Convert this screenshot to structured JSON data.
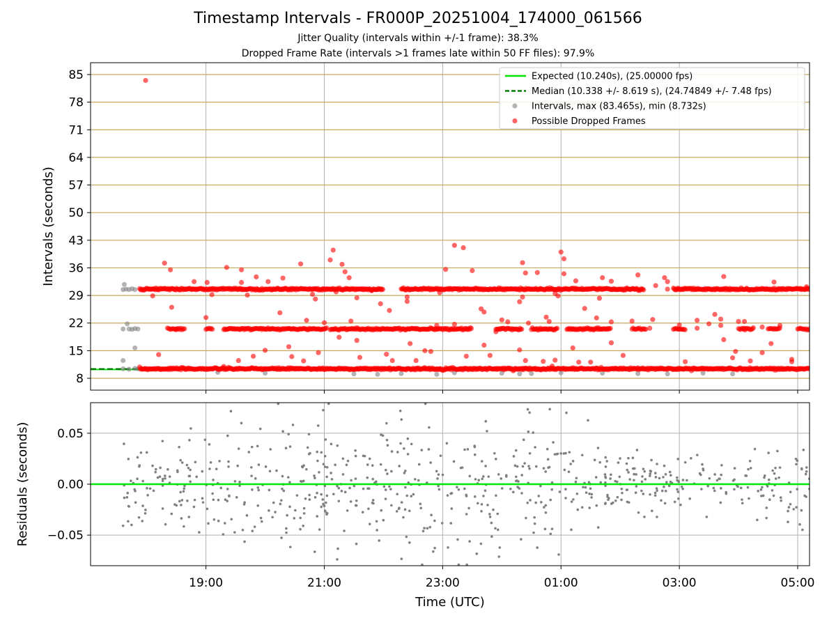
{
  "title": "Timestamp Intervals - FR000P_20251004_174000_061566",
  "subtitle1": "Jitter Quality (intervals within +/-1 frame): 38.3%",
  "subtitle2": "Dropped Frame Rate (intervals >1 frames late within 50 FF files): 97.9%",
  "colors": {
    "expected": "#00e600",
    "median": "#007a00",
    "intervals": "#808080",
    "dropped": "#ff0000",
    "hgrid": "#c8a85a",
    "vgrid": "#b0b0b0"
  },
  "chart_data": [
    {
      "type": "scatter",
      "name": "intervals",
      "xlabel": "",
      "ylabel": "Intervals (seconds)",
      "xlim": [
        17.05,
        29.2
      ],
      "ylim": [
        5.0,
        88.0
      ],
      "yticks": [
        8,
        15,
        22,
        29,
        36,
        43,
        50,
        57,
        64,
        71,
        78,
        85
      ],
      "ytick_labels": [
        "8",
        "15",
        "22",
        "29",
        "36",
        "43",
        "50",
        "57",
        "64",
        "71",
        "78",
        "85"
      ],
      "xticks": [
        19,
        21,
        23,
        25,
        27,
        29
      ],
      "legend_position": "top-right",
      "legend": [
        {
          "label": "Expected (10.240s), (25.00000 fps)",
          "kind": "line-solid"
        },
        {
          "label": "Median (10.338 +/- 8.619 s), (24.74849 +/- 7.48 fps)",
          "kind": "line-dashed"
        },
        {
          "label": "Intervals, max (83.465s), min (8.732s)",
          "kind": "dot-gray"
        },
        {
          "label": "Possible Dropped Frames",
          "kind": "dot-red"
        }
      ],
      "expected_value": 10.24,
      "median_value": 10.338,
      "median_x_range": [
        17.05,
        17.85
      ],
      "series": [
        {
          "name": "Intervals",
          "color": "#808080",
          "points": [
            [
              17.6,
              30.5
            ],
            [
              17.62,
              31.8
            ],
            [
              17.65,
              30.6
            ],
            [
              17.7,
              30.5
            ],
            [
              17.75,
              30.7
            ],
            [
              17.8,
              30.5
            ],
            [
              17.6,
              20.5
            ],
            [
              17.67,
              21.8
            ],
            [
              17.7,
              20.5
            ],
            [
              17.75,
              20.4
            ],
            [
              17.8,
              20.6
            ],
            [
              17.85,
              20.5
            ],
            [
              17.6,
              12.5
            ],
            [
              17.8,
              15.7
            ],
            [
              17.6,
              10.4
            ],
            [
              17.7,
              10.3
            ],
            [
              17.8,
              10.5
            ],
            [
              17.85,
              10.4
            ],
            [
              19.2,
              9.5
            ],
            [
              20.0,
              9.3
            ],
            [
              21.5,
              9.1
            ],
            [
              21.9,
              9.0
            ],
            [
              22.3,
              9.2
            ],
            [
              22.9,
              9.0
            ],
            [
              23.2,
              9.4
            ],
            [
              24.0,
              9.3
            ],
            [
              24.3,
              9.1
            ],
            [
              24.5,
              9.2
            ],
            [
              25.0,
              9.4
            ],
            [
              25.7,
              9.3
            ],
            [
              26.3,
              9.2
            ],
            [
              26.8,
              9.1
            ],
            [
              27.4,
              9.3
            ],
            [
              27.9,
              9.1
            ]
          ]
        },
        {
          "name": "Possible Dropped Frames",
          "color": "#ff0000",
          "bands": [
            {
              "y": 10.4,
              "x_start": 17.88,
              "x_end": 29.2,
              "step": 0.012
            },
            {
              "y": 20.5,
              "x_start": 18.35,
              "x_end": 18.65,
              "step": 0.018
            },
            {
              "y": 20.5,
              "x_start": 19.0,
              "x_end": 19.12,
              "step": 0.018
            },
            {
              "y": 20.5,
              "x_start": 19.3,
              "x_end": 21.05,
              "step": 0.015
            },
            {
              "y": 20.5,
              "x_start": 21.1,
              "x_end": 23.5,
              "step": 0.015
            },
            {
              "y": 20.5,
              "x_start": 23.9,
              "x_end": 24.35,
              "step": 0.015
            },
            {
              "y": 20.5,
              "x_start": 24.5,
              "x_end": 24.95,
              "step": 0.015
            },
            {
              "y": 20.5,
              "x_start": 25.1,
              "x_end": 25.85,
              "step": 0.015
            },
            {
              "y": 20.5,
              "x_start": 26.2,
              "x_end": 26.45,
              "step": 0.018
            },
            {
              "y": 20.5,
              "x_start": 26.9,
              "x_end": 27.1,
              "step": 0.018
            },
            {
              "y": 20.5,
              "x_start": 28.0,
              "x_end": 28.25,
              "step": 0.018
            },
            {
              "y": 20.5,
              "x_start": 28.5,
              "x_end": 28.7,
              "step": 0.018
            },
            {
              "y": 20.5,
              "x_start": 29.0,
              "x_end": 29.2,
              "step": 0.018
            },
            {
              "y": 30.6,
              "x_start": 17.88,
              "x_end": 22.0,
              "step": 0.013
            },
            {
              "y": 30.6,
              "x_start": 22.3,
              "x_end": 26.4,
              "step": 0.013
            },
            {
              "y": 30.6,
              "x_start": 26.9,
              "x_end": 29.2,
              "step": 0.013
            }
          ],
          "points": [
            [
              17.98,
              83.5
            ],
            [
              18.1,
              28.9
            ],
            [
              18.2,
              14.0
            ],
            [
              18.3,
              37.2
            ],
            [
              18.4,
              35.5
            ],
            [
              18.42,
              26.0
            ],
            [
              18.5,
              20.5
            ],
            [
              18.8,
              32.5
            ],
            [
              19.0,
              23.4
            ],
            [
              19.02,
              32.3
            ],
            [
              19.1,
              29.2
            ],
            [
              19.3,
              11.0
            ],
            [
              19.35,
              36.1
            ],
            [
              19.55,
              12.5
            ],
            [
              19.6,
              35.5
            ],
            [
              19.6,
              32.3
            ],
            [
              19.7,
              29.1
            ],
            [
              19.8,
              13.6
            ],
            [
              19.85,
              33.7
            ],
            [
              20.0,
              15.1
            ],
            [
              20.05,
              32.5
            ],
            [
              20.25,
              24.6
            ],
            [
              20.3,
              33.4
            ],
            [
              20.4,
              16.0
            ],
            [
              20.45,
              13.5
            ],
            [
              20.6,
              37.0
            ],
            [
              20.65,
              12.4
            ],
            [
              20.7,
              22.7
            ],
            [
              20.8,
              29.3
            ],
            [
              20.85,
              28.1
            ],
            [
              20.9,
              14.5
            ],
            [
              21.0,
              22.1
            ],
            [
              21.1,
              38.0
            ],
            [
              21.15,
              40.5
            ],
            [
              21.2,
              29.9
            ],
            [
              21.25,
              18.4
            ],
            [
              21.3,
              36.9
            ],
            [
              21.35,
              35.0
            ],
            [
              21.42,
              33.5
            ],
            [
              21.45,
              22.5
            ],
            [
              21.55,
              17.6
            ],
            [
              21.55,
              28.4
            ],
            [
              21.6,
              13.3
            ],
            [
              21.8,
              30.2
            ],
            [
              21.95,
              26.9
            ],
            [
              22.05,
              14.1
            ],
            [
              22.1,
              25.2
            ],
            [
              22.15,
              12.5
            ],
            [
              22.4,
              27.5
            ],
            [
              22.4,
              28.6
            ],
            [
              22.45,
              16.8
            ],
            [
              22.55,
              12.5
            ],
            [
              22.7,
              15.0
            ],
            [
              22.8,
              14.8
            ],
            [
              22.9,
              21.4
            ],
            [
              22.95,
              29.7
            ],
            [
              23.05,
              35.6
            ],
            [
              23.2,
              21.7
            ],
            [
              23.2,
              41.7
            ],
            [
              23.35,
              41.1
            ],
            [
              23.4,
              13.6
            ],
            [
              23.5,
              35.3
            ],
            [
              23.65,
              25.6
            ],
            [
              23.7,
              24.8
            ],
            [
              23.7,
              16.4
            ],
            [
              23.8,
              13.8
            ],
            [
              23.9,
              19.8
            ],
            [
              24.0,
              22.8
            ],
            [
              24.1,
              22.3
            ],
            [
              24.3,
              15.2
            ],
            [
              24.3,
              27.4
            ],
            [
              24.35,
              28.6
            ],
            [
              24.35,
              37.3
            ],
            [
              24.4,
              34.7
            ],
            [
              24.4,
              12.5
            ],
            [
              24.45,
              22.0
            ],
            [
              24.6,
              34.8
            ],
            [
              24.7,
              12.3
            ],
            [
              24.75,
              23.5
            ],
            [
              24.8,
              22.4
            ],
            [
              24.85,
              11.1
            ],
            [
              24.9,
              12.6
            ],
            [
              24.9,
              29.5
            ],
            [
              24.95,
              28.9
            ],
            [
              25.0,
              40.0
            ],
            [
              25.05,
              38.3
            ],
            [
              25.05,
              34.5
            ],
            [
              25.2,
              15.7
            ],
            [
              25.2,
              20.4
            ],
            [
              25.25,
              32.7
            ],
            [
              25.3,
              12.1
            ],
            [
              25.4,
              25.7
            ],
            [
              25.5,
              12.1
            ],
            [
              25.6,
              23.3
            ],
            [
              25.65,
              28.3
            ],
            [
              25.7,
              33.5
            ],
            [
              25.85,
              17.0
            ],
            [
              25.85,
              22.3
            ],
            [
              25.85,
              32.6
            ],
            [
              26.05,
              13.8
            ],
            [
              26.2,
              22.5
            ],
            [
              26.3,
              34.2
            ],
            [
              26.5,
              20.7
            ],
            [
              26.55,
              22.9
            ],
            [
              26.6,
              31.5
            ],
            [
              26.75,
              33.5
            ],
            [
              26.8,
              32.5
            ],
            [
              26.8,
              30.6
            ],
            [
              27.0,
              21.5
            ],
            [
              27.1,
              12.2
            ],
            [
              27.3,
              20.7
            ],
            [
              27.3,
              22.7
            ],
            [
              27.5,
              21.8
            ],
            [
              27.6,
              24.2
            ],
            [
              27.7,
              21.4
            ],
            [
              27.7,
              23.0
            ],
            [
              27.75,
              33.8
            ],
            [
              27.75,
              17.8
            ],
            [
              27.9,
              13.2
            ],
            [
              27.95,
              14.8
            ],
            [
              28.0,
              22.4
            ],
            [
              28.1,
              20.7
            ],
            [
              28.1,
              22.4
            ],
            [
              28.2,
              12.4
            ],
            [
              28.25,
              20.8
            ],
            [
              28.4,
              21.0
            ],
            [
              28.4,
              14.5
            ],
            [
              28.55,
              16.8
            ],
            [
              28.6,
              32.4
            ],
            [
              28.7,
              21.4
            ],
            [
              28.9,
              12.2
            ],
            [
              28.9,
              12.8
            ],
            [
              29.15,
              31.2
            ]
          ]
        }
      ]
    },
    {
      "type": "scatter",
      "name": "residuals",
      "xlabel": "Time (UTC)",
      "ylabel": "Residuals (seconds)",
      "xlim": [
        17.05,
        29.2
      ],
      "ylim": [
        -0.08,
        0.08
      ],
      "yticks": [
        0.05,
        0.0,
        -0.05
      ],
      "ytick_labels": [
        "0.05",
        "0.00",
        "−0.05"
      ],
      "xticks": [
        19,
        21,
        23,
        25,
        27,
        29
      ],
      "xtick_labels": [
        "19:00",
        "21:00",
        "23:00",
        "01:00",
        "03:00",
        "05:00"
      ],
      "zero_line": 0.0,
      "point_count": 720,
      "noise_profile": [
        [
          17.6,
          0.018
        ],
        [
          18.0,
          0.02
        ],
        [
          18.8,
          0.024
        ],
        [
          19.5,
          0.03
        ],
        [
          20.5,
          0.032
        ],
        [
          21.5,
          0.03
        ],
        [
          22.5,
          0.032
        ],
        [
          23.5,
          0.035
        ],
        [
          24.5,
          0.036
        ],
        [
          25.2,
          0.025
        ],
        [
          26.0,
          0.016
        ],
        [
          27.0,
          0.014
        ],
        [
          28.0,
          0.015
        ],
        [
          28.8,
          0.018
        ],
        [
          29.2,
          0.022
        ]
      ]
    }
  ]
}
